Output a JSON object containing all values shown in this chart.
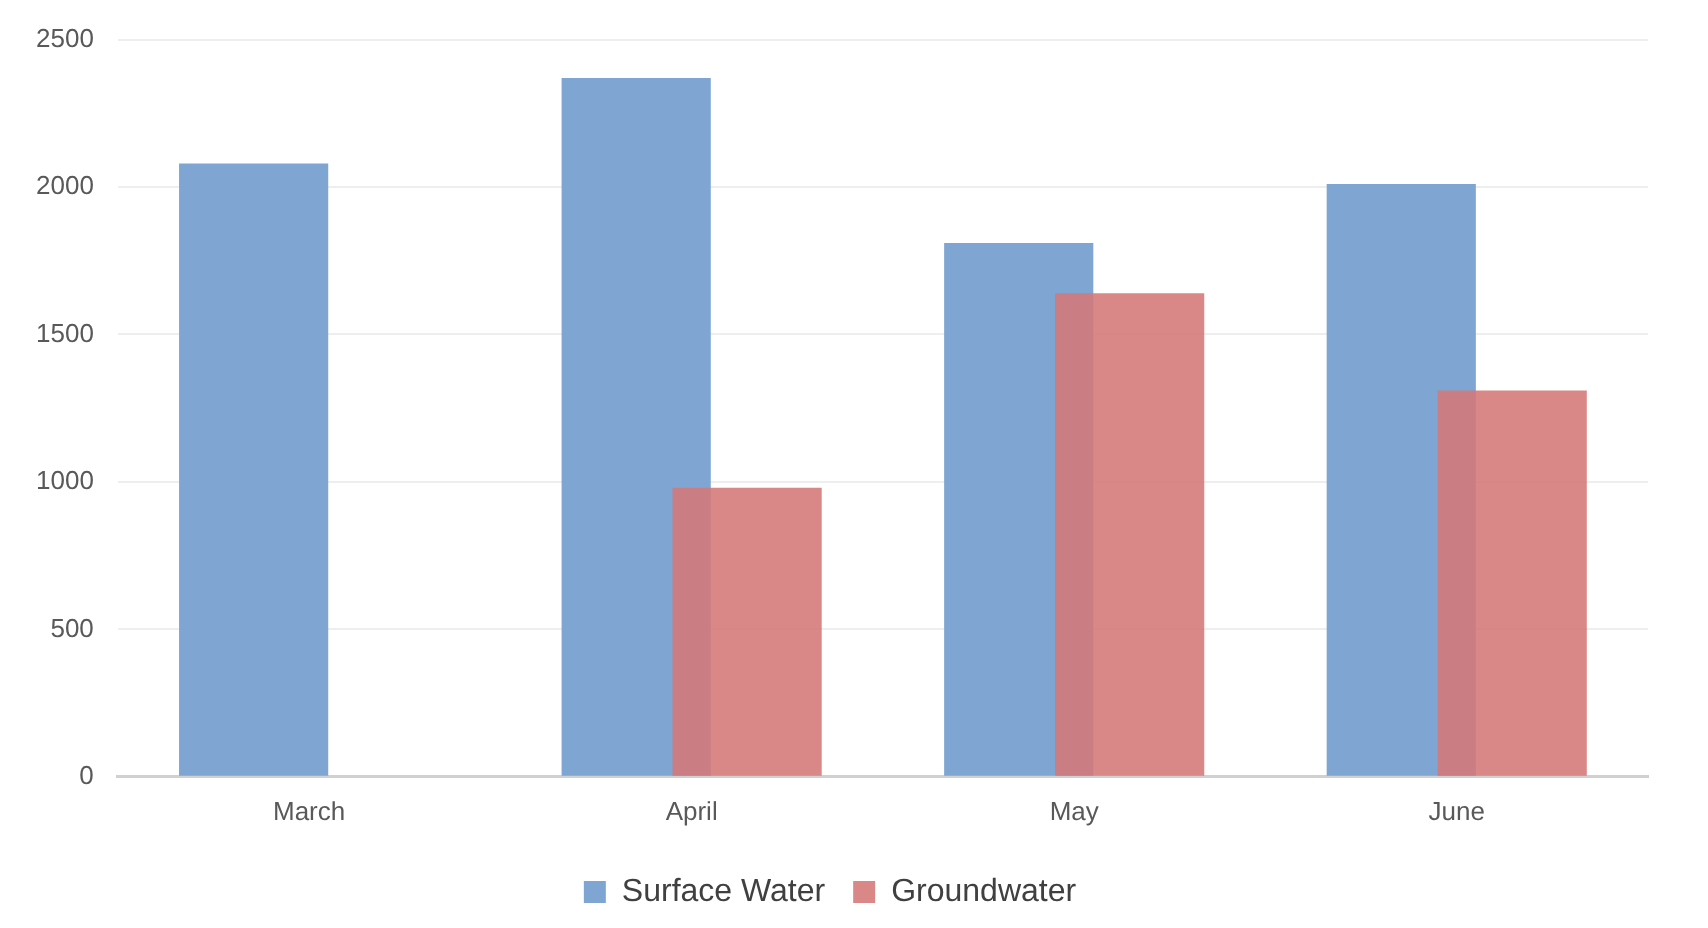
{
  "chart_data": {
    "type": "bar",
    "categories": [
      "March",
      "April",
      "May",
      "June"
    ],
    "series": [
      {
        "name": "Surface Water",
        "color": "#7fa6d3",
        "values": [
          2080,
          2370,
          1810,
          2010
        ]
      },
      {
        "name": "Groundwater",
        "color": "#d57876",
        "values": [
          null,
          980,
          1640,
          1310
        ]
      }
    ],
    "ylim": [
      0,
      2500
    ],
    "yticks": [
      0,
      500,
      1000,
      1500,
      2000,
      2500
    ],
    "grid": "y",
    "legend": "bottom"
  }
}
